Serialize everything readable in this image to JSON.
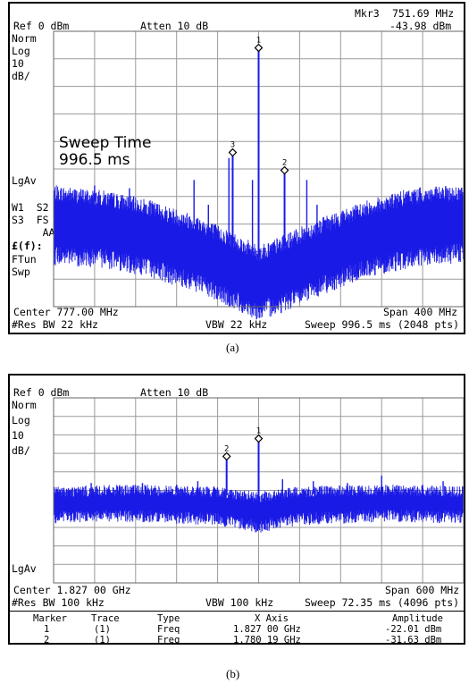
{
  "chart_data": [
    {
      "type": "line",
      "panel_label": "(a)",
      "header": {
        "ref": "Ref 0 dBm",
        "atten": "Atten 10 dB",
        "marker_name": "Mkr3",
        "marker_freq": "751.69 MHz",
        "marker_amp": "-43.98 dBm"
      },
      "side_labels": [
        "Norm",
        "Log",
        "10",
        "dB/"
      ],
      "side_labels_lower": [
        "LgAv",
        "W1  S2",
        "S3  FS",
        "     AA",
        "£(f):",
        "FTun",
        "Swp"
      ],
      "overlay_text": [
        "Sweep Time",
        "996.5 ms"
      ],
      "footer": {
        "center": "Center 777.00 MHz",
        "span": "Span 400 MHz",
        "res_bw": "#Res BW 22 kHz",
        "vbw": "VBW 22 kHz",
        "sweep": "Sweep 996.5 ms (2048 pts)"
      },
      "x_range_mhz": [
        577,
        977
      ],
      "y_range_db": [
        -100,
        0
      ],
      "grid": true,
      "noise_floor_profile": {
        "x_mhz": [
          577,
          627,
          667,
          717,
          752,
          777,
          802,
          837,
          887,
          927,
          977
        ],
        "db_top": [
          -60,
          -62,
          -65,
          -71,
          -77,
          -82,
          -78,
          -72,
          -65,
          -61,
          -60
        ],
        "db_bot": [
          -78,
          -79,
          -82,
          -88,
          -94,
          -98,
          -95,
          -89,
          -82,
          -79,
          -77
        ]
      },
      "spurs": [
        {
          "x_mhz": 617,
          "db": -56
        },
        {
          "x_mhz": 651,
          "db": -57
        },
        {
          "x_mhz": 714,
          "db": -54
        },
        {
          "x_mhz": 728,
          "db": -63
        },
        {
          "x_mhz": 748,
          "db": -46
        },
        {
          "x_mhz": 771,
          "db": -54
        },
        {
          "x_mhz": 824,
          "db": -54
        },
        {
          "x_mhz": 834,
          "db": -63
        }
      ],
      "markers": [
        {
          "label": "1",
          "x_mhz": 777.0,
          "db": -6.0
        },
        {
          "label": "2",
          "x_mhz": 802.3,
          "db": -50.5
        },
        {
          "label": "3",
          "x_mhz": 751.7,
          "db": -44.0
        }
      ]
    },
    {
      "type": "line",
      "panel_label": "(b)",
      "header": {
        "ref": "Ref 0 dBm",
        "atten": "Atten 10 dB"
      },
      "side_labels": [
        "Norm",
        "Log",
        "10",
        "dB/"
      ],
      "side_labels_lower": [
        "LgAv"
      ],
      "footer": {
        "center": "Center 1.827 00 GHz",
        "span": "Span 600 MHz",
        "res_bw": "#Res BW 100 kHz",
        "vbw": "VBW 100 kHz",
        "sweep": "Sweep 72.35 ms (4096 pts)"
      },
      "x_range_ghz": [
        1.527,
        2.127
      ],
      "y_range_db": [
        -100,
        0
      ],
      "grid": true,
      "noise_floor_profile": {
        "x_ghz": [
          1.527,
          1.647,
          1.767,
          1.827,
          1.887,
          2.007,
          2.127
        ],
        "db_top": [
          -52,
          -51,
          -52,
          -55,
          -52,
          -51,
          -52
        ],
        "db_bot": [
          -61,
          -60,
          -62,
          -66,
          -62,
          -60,
          -61
        ]
      },
      "spurs": [
        {
          "x_ghz": 1.582,
          "db": -46
        },
        {
          "x_ghz": 1.627,
          "db": -48
        },
        {
          "x_ghz": 1.657,
          "db": -46
        },
        {
          "x_ghz": 1.707,
          "db": -47
        },
        {
          "x_ghz": 1.738,
          "db": -45
        },
        {
          "x_ghz": 1.862,
          "db": -44
        },
        {
          "x_ghz": 1.907,
          "db": -45
        },
        {
          "x_ghz": 1.957,
          "db": -46
        },
        {
          "x_ghz": 2.007,
          "db": -42
        },
        {
          "x_ghz": 2.067,
          "db": -47
        },
        {
          "x_ghz": 2.097,
          "db": -45
        }
      ],
      "markers": [
        {
          "label": "1",
          "x_ghz": 1.827,
          "db": -22.01
        },
        {
          "label": "2",
          "x_ghz": 1.78019,
          "db": -31.63
        }
      ],
      "marker_table": {
        "headers": [
          "Marker",
          "Trace",
          "Type",
          "X Axis",
          "Amplitude"
        ],
        "rows": [
          [
            "1",
            "(1)",
            "Freq",
            "1.827 00 GHz",
            "-22.01 dBm"
          ],
          [
            "2",
            "(1)",
            "Freq",
            "1.780 19 GHz",
            "-31.63 dBm"
          ]
        ]
      }
    }
  ],
  "colors": {
    "trace": "#1a1ae6",
    "grid": "#9a9a9a",
    "frame": "#000000",
    "background": "#ffffff"
  }
}
